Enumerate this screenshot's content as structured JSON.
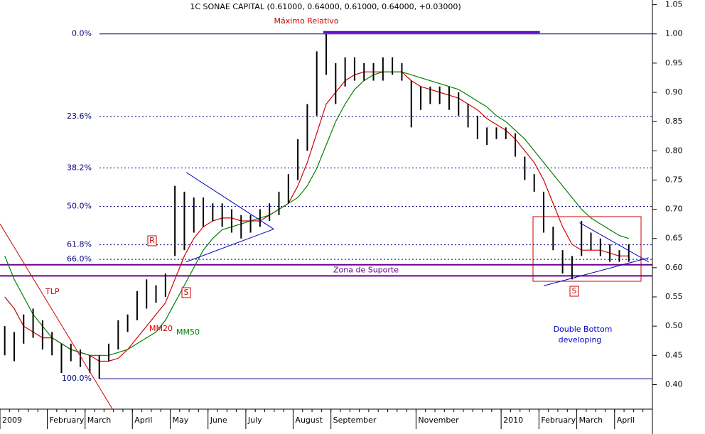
{
  "chart_data": {
    "type": "ohlc",
    "title": "1C SONAE CAPITAL (0.61000, 0.64000, 0.61000, 0.64000, +0.03000)",
    "categories": [
      "2009",
      null,
      null,
      null,
      null,
      "February",
      null,
      null,
      null,
      "March",
      null,
      null,
      null,
      null,
      "April",
      null,
      null,
      null,
      "May",
      null,
      null,
      null,
      "June",
      null,
      null,
      null,
      "July",
      null,
      null,
      null,
      null,
      "August",
      null,
      null,
      null,
      "September",
      null,
      null,
      null,
      null,
      null,
      null,
      null,
      null,
      "November",
      null,
      null,
      null,
      null,
      null,
      null,
      null,
      null,
      "2010",
      null,
      null,
      null,
      "February",
      null,
      null,
      null,
      "March",
      null,
      null,
      null,
      "April",
      null,
      null,
      null
    ],
    "low": [
      0.45,
      0.44,
      0.47,
      0.48,
      0.46,
      0.45,
      0.42,
      0.44,
      0.43,
      0.42,
      0.41,
      0.44,
      0.46,
      0.49,
      0.51,
      0.53,
      0.54,
      0.55,
      0.62,
      0.63,
      0.66,
      0.67,
      0.68,
      0.67,
      0.66,
      0.65,
      0.66,
      0.67,
      0.68,
      0.69,
      0.71,
      0.75,
      0.8,
      0.86,
      0.93,
      0.88,
      0.91,
      0.92,
      0.92,
      0.92,
      0.92,
      0.93,
      0.92,
      0.84,
      0.87,
      0.88,
      0.88,
      0.87,
      0.86,
      0.84,
      0.82,
      0.81,
      0.82,
      0.82,
      0.79,
      0.75,
      0.73,
      0.66,
      0.63,
      0.59,
      0.58,
      0.62,
      0.63,
      0.62,
      0.61,
      0.61,
      0.61,
      null,
      null
    ],
    "high": [
      0.5,
      0.49,
      0.52,
      0.53,
      0.51,
      0.49,
      0.47,
      0.47,
      0.46,
      0.45,
      0.45,
      0.47,
      0.51,
      0.52,
      0.56,
      0.58,
      0.57,
      0.59,
      0.74,
      0.73,
      0.72,
      0.72,
      0.71,
      0.71,
      0.7,
      0.69,
      0.69,
      0.7,
      0.71,
      0.73,
      0.76,
      0.82,
      0.88,
      0.97,
      1.0,
      0.95,
      0.96,
      0.96,
      0.95,
      0.95,
      0.96,
      0.96,
      0.95,
      0.92,
      0.91,
      0.91,
      0.91,
      0.91,
      0.9,
      0.88,
      0.86,
      0.84,
      0.84,
      0.84,
      0.83,
      0.79,
      0.76,
      0.73,
      0.67,
      0.63,
      0.62,
      0.68,
      0.66,
      0.65,
      0.64,
      0.63,
      0.64,
      null,
      null
    ],
    "bar_color": "#000000",
    "series": [
      {
        "name": "MM20",
        "color": "#d00000",
        "values": [
          0.55,
          0.53,
          0.5,
          0.49,
          0.48,
          0.48,
          0.47,
          0.46,
          0.455,
          0.45,
          0.44,
          0.44,
          0.445,
          0.46,
          0.48,
          0.5,
          0.52,
          0.54,
          0.58,
          0.62,
          0.65,
          0.67,
          0.68,
          0.685,
          0.685,
          0.68,
          0.68,
          0.68,
          0.69,
          0.7,
          0.71,
          0.74,
          0.78,
          0.83,
          0.88,
          0.9,
          0.92,
          0.93,
          0.935,
          0.935,
          0.935,
          0.935,
          0.935,
          0.92,
          0.91,
          0.905,
          0.9,
          0.895,
          0.89,
          0.88,
          0.87,
          0.855,
          0.845,
          0.835,
          0.82,
          0.8,
          0.78,
          0.75,
          0.71,
          0.67,
          0.64,
          0.63,
          0.63,
          0.63,
          0.625,
          0.62,
          0.62,
          null,
          null
        ]
      },
      {
        "name": "MM50",
        "color": "#008000",
        "values": [
          0.62,
          0.58,
          0.55,
          0.52,
          0.5,
          0.48,
          0.47,
          0.46,
          0.455,
          0.45,
          0.45,
          0.45,
          0.455,
          0.46,
          0.47,
          0.48,
          0.49,
          0.51,
          0.54,
          0.57,
          0.6,
          0.63,
          0.65,
          0.665,
          0.67,
          0.675,
          0.68,
          0.685,
          0.69,
          0.7,
          0.71,
          0.72,
          0.74,
          0.77,
          0.81,
          0.85,
          0.88,
          0.905,
          0.92,
          0.93,
          0.935,
          0.935,
          0.935,
          0.93,
          0.925,
          0.92,
          0.915,
          0.91,
          0.905,
          0.895,
          0.885,
          0.875,
          0.86,
          0.85,
          0.835,
          0.82,
          0.8,
          0.78,
          0.76,
          0.74,
          0.72,
          0.7,
          0.685,
          0.675,
          0.665,
          0.655,
          0.65,
          null,
          null
        ]
      }
    ],
    "ylim": [
      0.358,
      1.058
    ],
    "yticks": [
      {
        "value": 0.4,
        "label": "0.40"
      },
      {
        "value": 0.45,
        "label": "0.45"
      },
      {
        "value": 0.5,
        "label": "0.50"
      },
      {
        "value": 0.55,
        "label": "0.55"
      },
      {
        "value": 0.6,
        "label": "0.60"
      },
      {
        "value": 0.65,
        "label": "0.65"
      },
      {
        "value": 0.7,
        "label": "0.70"
      },
      {
        "value": 0.75,
        "label": "0.75"
      },
      {
        "value": 0.8,
        "label": "0.80"
      },
      {
        "value": 0.85,
        "label": "0.85"
      },
      {
        "value": 0.9,
        "label": "0.90"
      },
      {
        "value": 0.95,
        "label": "0.95"
      },
      {
        "value": 1.0,
        "label": "1.00"
      },
      {
        "value": 1.05,
        "label": "1.05"
      }
    ],
    "levels": [
      {
        "label": "0.0%",
        "value": 1.0,
        "style": "solid"
      },
      {
        "label": "23.6%",
        "value": 0.8584,
        "style": "dotted"
      },
      {
        "label": "38.2%",
        "value": 0.7708,
        "style": "dotted"
      },
      {
        "label": "50.0%",
        "value": 0.705,
        "style": "dotted"
      },
      {
        "label": "61.8%",
        "value": 0.6392,
        "style": "dotted"
      },
      {
        "label": "66.0%",
        "value": 0.6142,
        "style": "dotted"
      },
      {
        "label": "100.0%",
        "value": 0.41,
        "style": "solid"
      }
    ],
    "level_color": "#000080",
    "support": {
      "label": "Zona de Suporte",
      "values": [
        0.605,
        0.586
      ],
      "color": "#6a0090"
    },
    "trendlines": [
      {
        "label": "TLP",
        "color": "#d00000",
        "x": [
          -0.5,
          11.4
        ],
        "y": [
          0.675,
          0.358
        ]
      },
      {
        "color": "#0000c0",
        "x": [
          19.2,
          28.45
        ],
        "y": [
          0.763,
          0.666
        ]
      },
      {
        "color": "#0000c0",
        "x": [
          19.2,
          28.45
        ],
        "y": [
          0.61,
          0.666
        ]
      },
      {
        "color": "#0000c0",
        "x": [
          60.8,
          68.1
        ],
        "y": [
          0.677,
          0.61
        ]
      },
      {
        "color": "#0000c0",
        "x": [
          57.0,
          68.1
        ],
        "y": [
          0.569,
          0.617
        ]
      },
      {
        "color": "#5a00c8",
        "x": [
          33.7,
          56.6
        ],
        "y": [
          1.003,
          1.003
        ]
      }
    ],
    "annotations": [
      "Máximo Relativo",
      "Double Bottom",
      "developing"
    ],
    "markers": [
      "R",
      "S",
      "S"
    ]
  }
}
